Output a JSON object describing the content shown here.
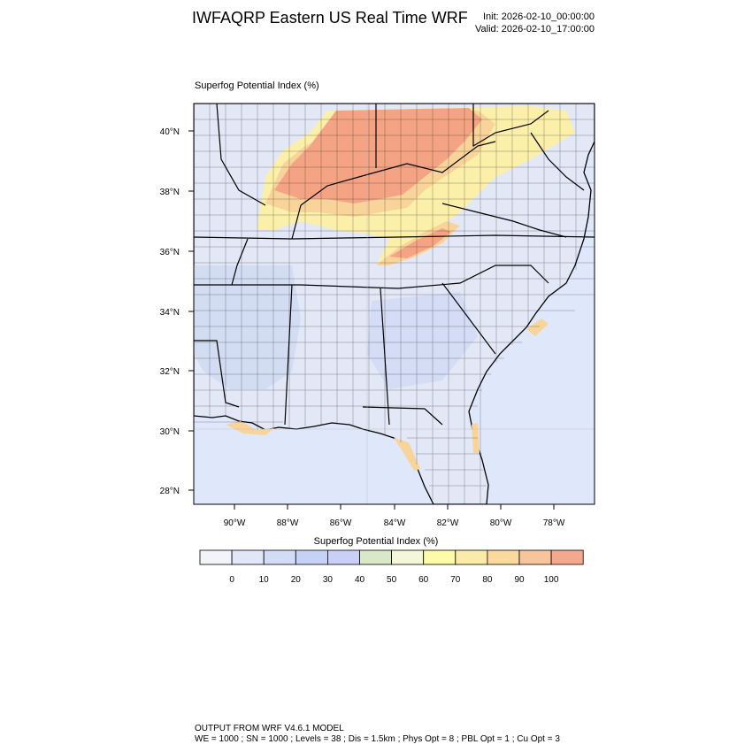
{
  "header": {
    "title": "IWFAQRP Eastern US Real Time WRF",
    "init": "Init: 2026-02-10_00:00:00",
    "valid": "Valid: 2026-02-10_17:00:00"
  },
  "map": {
    "subtitle": "Superfog Potential Index   (%)",
    "lat_labels": [
      "40°N",
      "38°N",
      "36°N",
      "34°N",
      "32°N",
      "30°N",
      "28°N"
    ],
    "lon_labels": [
      "90°W",
      "88°W",
      "86°W",
      "84°W",
      "82°W",
      "80°W",
      "78°W"
    ],
    "colors": {
      "ocean": "#dfe8fb",
      "land_low": "#e3e8f7",
      "low_blue": "#cdd9f3",
      "yellow": "#fbefaa",
      "orange": "#f9d49a",
      "salmon": "#f4a484",
      "border": "#000000"
    }
  },
  "colorbar": {
    "title": "Superfog Potential Index  (%)",
    "labels": [
      "0",
      "10",
      "20",
      "30",
      "40",
      "50",
      "60",
      "70",
      "80",
      "90",
      "100"
    ],
    "colors": [
      "#f2f4fa",
      "#e1e7f9",
      "#d2dcf6",
      "#c5d1f5",
      "#c9cff7",
      "#d9e8c6",
      "#f4f8d8",
      "#fbfba8",
      "#fbeba8",
      "#f9d99c",
      "#f8c49c",
      "#f4a98f"
    ]
  },
  "footer": {
    "line1": "OUTPUT FROM WRF V4.6.1 MODEL",
    "line2": "WE = 1000 ; SN = 1000 ; Levels = 38 ; Dis = 1.5km ; Phys Opt = 8 ; PBL Opt = 1 ; Cu Opt = 3"
  }
}
